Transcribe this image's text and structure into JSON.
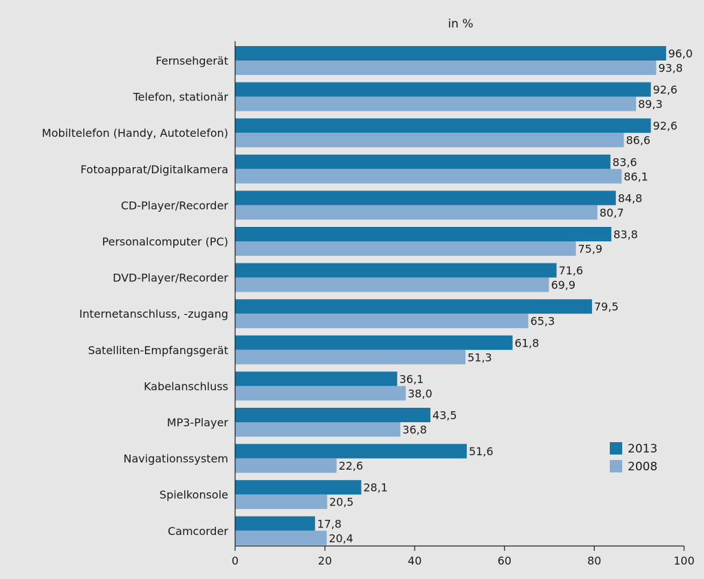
{
  "chart_data": {
    "type": "bar",
    "orientation": "horizontal",
    "title": "in %",
    "categories": [
      "Fernsehgerät",
      "Telefon, stationär",
      "Mobiltelefon (Handy, Autotelefon)",
      "Fotoapparat/Digitalkamera",
      "CD-Player/Recorder",
      "Personalcomputer (PC)",
      "DVD-Player/Recorder",
      "Internetanschluss, -zugang",
      "Satelliten-Empfangsgerät",
      "Kabelanschluss",
      "MP3-Player",
      "Navigationssystem",
      "Spielkonsole",
      "Camcorder"
    ],
    "series": [
      {
        "name": "2013",
        "color": "#1776a6",
        "values": [
          96.0,
          92.6,
          92.6,
          83.6,
          84.8,
          83.8,
          71.6,
          79.5,
          61.8,
          36.1,
          43.5,
          51.6,
          28.1,
          17.8
        ],
        "labels": [
          "96,0",
          "92,6",
          "92,6",
          "83,6",
          "84,8",
          "83,8",
          "71,6",
          "79,5",
          "61,8",
          "36,1",
          "43,5",
          "51,6",
          "28,1",
          "17,8"
        ]
      },
      {
        "name": "2008",
        "color": "#87acd2",
        "values": [
          93.8,
          89.3,
          86.6,
          86.1,
          80.7,
          75.9,
          69.9,
          65.3,
          51.3,
          38.0,
          36.8,
          22.6,
          20.5,
          20.4
        ],
        "labels": [
          "93,8",
          "89,3",
          "86,6",
          "86,1",
          "80,7",
          "75,9",
          "69,9",
          "65,3",
          "51,3",
          "38,0",
          "36,8",
          "22,6",
          "20,5",
          "20,4"
        ]
      }
    ],
    "xlim": [
      0,
      100
    ],
    "xticks": [
      0,
      20,
      40,
      60,
      80,
      100
    ],
    "grid": false,
    "legend_position": "lower-right",
    "background_color": "#e6e6e6",
    "axis_color": "#1a1a1a"
  }
}
